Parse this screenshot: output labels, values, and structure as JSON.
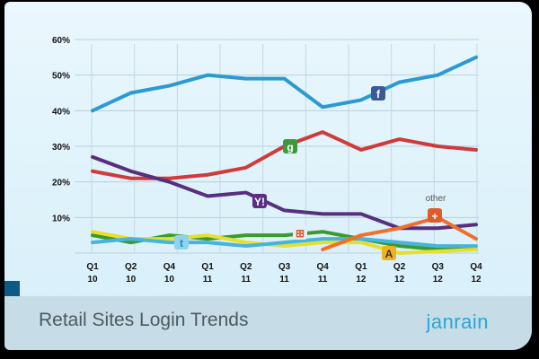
{
  "chart_data": {
    "type": "line",
    "title": "Retail Sites Login Trends",
    "xlabel": "",
    "ylabel": "",
    "categories": [
      "Q1 10",
      "Q2 10",
      "Q4 10",
      "Q1 11",
      "Q2 11",
      "Q3 11",
      "Q4 11",
      "Q1 12",
      "Q2 12",
      "Q3 12",
      "Q4 12"
    ],
    "category_lines": [
      [
        "Q1",
        "10"
      ],
      [
        "Q2",
        "10"
      ],
      [
        "Q4",
        "10"
      ],
      [
        "Q1",
        "11"
      ],
      [
        "Q2",
        "11"
      ],
      [
        "Q3",
        "11"
      ],
      [
        "Q4",
        "11"
      ],
      [
        "Q1",
        "12"
      ],
      [
        "Q2",
        "12"
      ],
      [
        "Q3",
        "12"
      ],
      [
        "Q4",
        "12"
      ]
    ],
    "yticks": [
      "10%",
      "20%",
      "30%",
      "40%",
      "50%",
      "60%"
    ],
    "ylim": [
      0,
      60
    ],
    "grid": true,
    "series": [
      {
        "icon": "facebook-icon",
        "color": "#2b9ad3",
        "values": [
          40,
          45,
          47,
          50,
          49,
          49,
          41,
          43,
          48,
          50,
          55
        ]
      },
      {
        "icon": "google-icon",
        "color": "#cf3a3a",
        "values": [
          23,
          21,
          21,
          22,
          24,
          30,
          34,
          29,
          32,
          30,
          29
        ]
      },
      {
        "icon": "yahoo-icon",
        "color": "#56307f",
        "values": [
          27,
          23,
          20,
          16,
          17,
          12,
          11,
          11,
          7,
          7,
          8
        ]
      },
      {
        "icon": "windows-live-icon",
        "color": "#3c9a2c",
        "values": [
          5,
          3,
          5,
          4,
          5,
          5,
          6,
          4,
          2,
          1,
          1
        ]
      },
      {
        "icon": "aol-icon",
        "color": "#e6df2e",
        "values": [
          6,
          4,
          4,
          5,
          3,
          2,
          3,
          3,
          0,
          0.5,
          1
        ]
      },
      {
        "icon": "twitter-icon",
        "color": "#45b4df",
        "values": [
          3,
          4,
          3,
          3,
          2,
          3,
          4,
          4,
          3,
          2,
          2
        ]
      },
      {
        "name": "other",
        "icon": "plus-icon",
        "color": "#f06f2e",
        "values": [
          null,
          null,
          null,
          null,
          null,
          null,
          1,
          5,
          7,
          10,
          4
        ]
      }
    ]
  },
  "footer": {
    "title": "Retail Sites Login Trends",
    "brand": "janrain"
  }
}
